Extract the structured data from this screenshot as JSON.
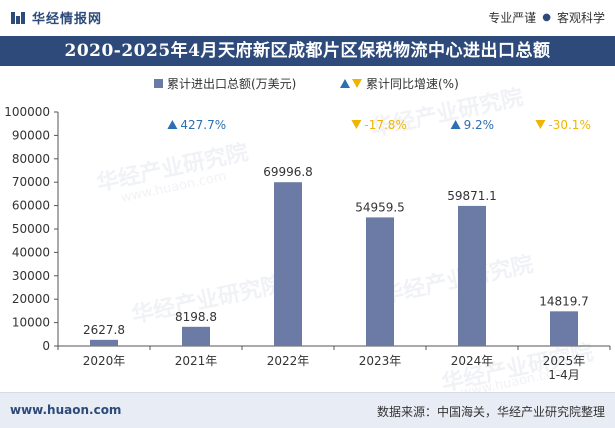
{
  "header": {
    "brand_name": "华经情报网",
    "tag_1": "专业严谨",
    "tag_sep": "●",
    "tag_2": "客观科学"
  },
  "title": "2020-2025年4月天府新区成都片区保税物流中心进出口总额",
  "legend": {
    "bar_label": "累计进出口总额(万美元)",
    "growth_label": "累计同比增速(%)"
  },
  "watermark": {
    "text": "华经产业研究院",
    "sub": "www.huaon.com"
  },
  "footer": {
    "url": "www.huaon.com",
    "source": "数据来源：中国海关，华经产业研究院整理"
  },
  "chart_data": {
    "type": "bar",
    "categories": [
      "2020年",
      "2021年",
      "2022年",
      "2023年",
      "2024年",
      "2025年\n1-4月"
    ],
    "series": [
      {
        "name": "累计进出口总额(万美元)",
        "values": [
          2627.8,
          8198.8,
          69996.8,
          54959.5,
          59871.1,
          14819.7
        ],
        "labels": [
          "2627.8",
          "8198.8",
          "69996.8",
          "54959.5",
          "59871.1",
          "14819.7"
        ],
        "color": "#6b7ba6"
      },
      {
        "name": "累计同比增速(%)",
        "values": [
          null,
          427.7,
          null,
          -17.8,
          9.2,
          -30.1
        ],
        "labels": [
          "",
          "427.7%",
          "",
          "-17.8%",
          "9.2%",
          "-30.1%"
        ]
      }
    ],
    "up_color": "#2c6fb3",
    "down_color": "#f0b400",
    "ylim": [
      0,
      100000
    ],
    "yticks": [
      0,
      10000,
      20000,
      30000,
      40000,
      50000,
      60000,
      70000,
      80000,
      90000,
      100000
    ],
    "grid": false
  }
}
